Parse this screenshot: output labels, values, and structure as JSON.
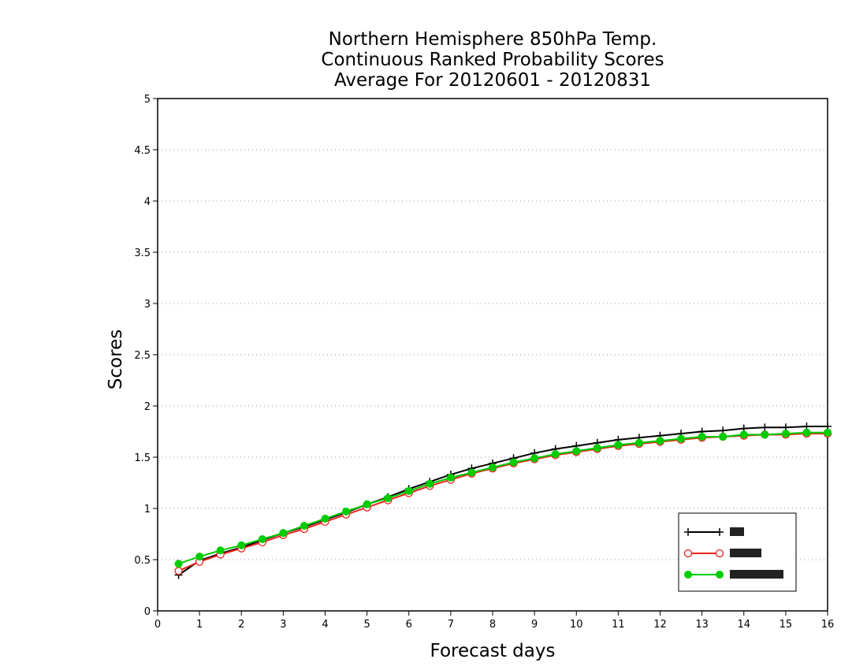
{
  "chart_data": {
    "type": "line",
    "title": [
      "Northern Hemisphere 850hPa Temp.",
      "Continuous Ranked Probability Scores",
      "Average For 20120601 - 20120831"
    ],
    "xlabel": "Forecast days",
    "ylabel": "Scores",
    "xlim": [
      0,
      16
    ],
    "ylim": [
      0,
      5
    ],
    "x_ticks": [
      "0",
      "1",
      "2",
      "3",
      "4",
      "5",
      "6",
      "7",
      "8",
      "9",
      "10",
      "11",
      "12",
      "13",
      "14",
      "15",
      "16"
    ],
    "y_ticks": [
      "0",
      "0.5",
      "1",
      "1.5",
      "2",
      "2.5",
      "3",
      "3.5",
      "4",
      "4.5",
      "5"
    ],
    "grid": "horizontal dotted",
    "legend_position": "bottom-right",
    "x": [
      0.5,
      1,
      1.5,
      2,
      2.5,
      3,
      3.5,
      4,
      4.5,
      5,
      5.5,
      6,
      6.5,
      7,
      7.5,
      8,
      8.5,
      9,
      9.5,
      10,
      10.5,
      11,
      11.5,
      12,
      12.5,
      13,
      13.5,
      14,
      14.5,
      15,
      15.5,
      16
    ],
    "series": [
      {
        "color": "#000000",
        "marker": "plus",
        "values": [
          0.35,
          0.49,
          0.56,
          0.62,
          0.69,
          0.76,
          0.82,
          0.89,
          0.96,
          1.04,
          1.11,
          1.19,
          1.26,
          1.33,
          1.39,
          1.44,
          1.49,
          1.54,
          1.58,
          1.61,
          1.64,
          1.67,
          1.69,
          1.71,
          1.73,
          1.75,
          1.76,
          1.78,
          1.79,
          1.79,
          1.8,
          1.8
        ]
      },
      {
        "color": "#e8231d",
        "marker": "open-circle",
        "values": [
          0.39,
          0.48,
          0.55,
          0.61,
          0.67,
          0.74,
          0.8,
          0.87,
          0.94,
          1.01,
          1.08,
          1.15,
          1.22,
          1.28,
          1.34,
          1.39,
          1.44,
          1.48,
          1.52,
          1.55,
          1.58,
          1.61,
          1.63,
          1.65,
          1.67,
          1.69,
          1.7,
          1.71,
          1.72,
          1.72,
          1.73,
          1.73
        ]
      },
      {
        "color": "#00cc00",
        "marker": "filled-circle",
        "values": [
          0.46,
          0.53,
          0.59,
          0.64,
          0.7,
          0.76,
          0.83,
          0.9,
          0.97,
          1.04,
          1.1,
          1.17,
          1.24,
          1.3,
          1.35,
          1.4,
          1.45,
          1.49,
          1.53,
          1.56,
          1.59,
          1.62,
          1.64,
          1.66,
          1.68,
          1.7,
          1.7,
          1.72,
          1.72,
          1.73,
          1.74,
          1.74
        ]
      }
    ]
  }
}
